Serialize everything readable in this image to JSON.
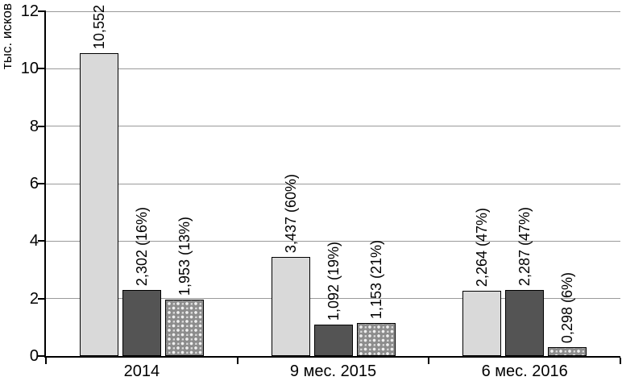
{
  "chart_data": {
    "type": "bar",
    "title": "",
    "xlabel": "",
    "ylabel": "тыс. исков",
    "ylim": [
      0,
      12
    ],
    "yticks": [
      0,
      2,
      4,
      6,
      8,
      10,
      12
    ],
    "grid": true,
    "legend": "none",
    "categories": [
      "2014",
      "9 мес. 2015",
      "6 мес. 2016"
    ],
    "series": [
      {
        "name": "light-gray-series",
        "style": "light-gray-solid",
        "values": [
          10.552,
          3.437,
          2.264
        ],
        "bar_labels": [
          "10,552",
          "3,437 (60%)",
          "2,264 (47%)"
        ]
      },
      {
        "name": "dark-gray-series",
        "style": "dark-gray-solid",
        "values": [
          2.302,
          1.092,
          2.287
        ],
        "bar_labels": [
          "2,302 (16%)",
          "1,092 (19%)",
          "2,287 (47%)"
        ]
      },
      {
        "name": "sphere-pattern-series",
        "style": "sphere-texture",
        "values": [
          1.953,
          1.153,
          0.298
        ],
        "bar_labels": [
          "1,953 (13%)",
          "1,153 (21%)",
          "0,298 (6%)"
        ]
      }
    ],
    "colors": {
      "light_bar": "#d9d9d9",
      "dark_bar": "#545454",
      "pattern_base": "#dcdcdc",
      "pattern_dot": "#8c8c8c",
      "axis": "#000000",
      "gridline": "#9a9a9a",
      "text": "#000000"
    }
  }
}
